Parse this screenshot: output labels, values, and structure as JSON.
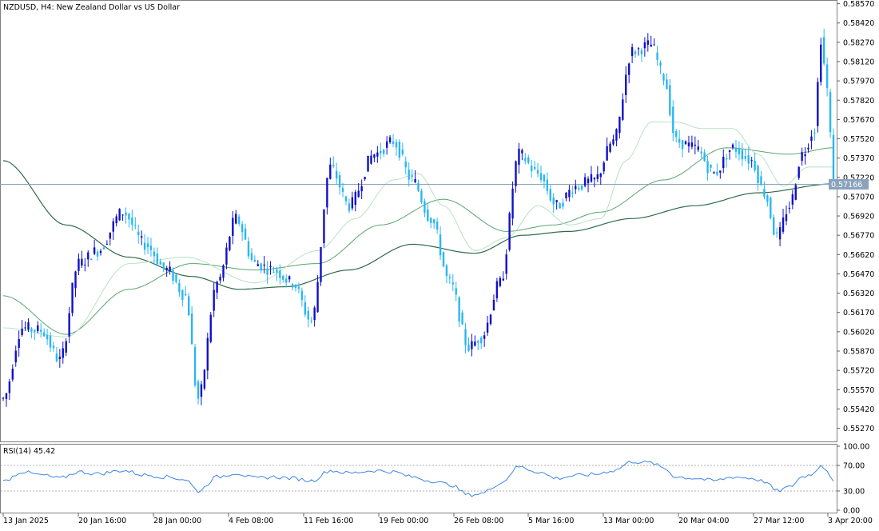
{
  "chart_title": "NZDUSD, H4:  New Zealand Dollar vs US Dollar",
  "current_price_label": "0.57166",
  "colors": {
    "bull": "#1010c8",
    "bear": "#29b6f6",
    "ma_fast": "#b8e2c4",
    "ma_mid": "#5aa56e",
    "ma_slow": "#2f6b47",
    "rsi": "#3d86e8",
    "price_line": "#8aa3bc",
    "axis": "#606060",
    "grid_dotted": "#b0b0b0"
  },
  "chart_data": {
    "type": "candlestick",
    "symbol": "NZDUSD",
    "timeframe": "H4",
    "ylim": [
      0.5518,
      0.5858
    ],
    "y_ticks": [
      "0.58570",
      "0.58420",
      "0.58270",
      "0.58120",
      "0.57970",
      "0.57820",
      "0.57670",
      "0.57520",
      "0.57370",
      "0.57220",
      "0.57070",
      "0.56920",
      "0.56770",
      "0.56620",
      "0.56470",
      "0.56320",
      "0.56170",
      "0.56020",
      "0.55870",
      "0.55720",
      "0.55570",
      "0.55420",
      "0.55270"
    ],
    "x_ticks": [
      "13 Jan 2025",
      "20 Jan 16:00",
      "28 Jan 00:00",
      "4 Feb 08:00",
      "11 Feb 16:00",
      "19 Feb 00:00",
      "26 Feb 08:00",
      "5 Mar 16:00",
      "13 Mar 00:00",
      "20 Mar 04:00",
      "27 Mar 12:00",
      "3 Apr 20:00"
    ],
    "last_price": 0.57166,
    "price_anchors": [
      [
        0,
        0.555
      ],
      [
        6,
        0.5605
      ],
      [
        12,
        0.5603
      ],
      [
        18,
        0.558
      ],
      [
        24,
        0.5655
      ],
      [
        30,
        0.5665
      ],
      [
        38,
        0.5695
      ],
      [
        45,
        0.567
      ],
      [
        52,
        0.565
      ],
      [
        58,
        0.563
      ],
      [
        62,
        0.555
      ],
      [
        68,
        0.564
      ],
      [
        74,
        0.569
      ],
      [
        80,
        0.5655
      ],
      [
        86,
        0.565
      ],
      [
        92,
        0.564
      ],
      [
        98,
        0.561
      ],
      [
        104,
        0.573
      ],
      [
        110,
        0.57
      ],
      [
        118,
        0.574
      ],
      [
        124,
        0.575
      ],
      [
        130,
        0.572
      ],
      [
        136,
        0.569
      ],
      [
        142,
        0.564
      ],
      [
        148,
        0.559
      ],
      [
        152,
        0.5598
      ],
      [
        158,
        0.564
      ],
      [
        164,
        0.574
      ],
      [
        170,
        0.5725
      ],
      [
        176,
        0.57
      ],
      [
        182,
        0.5715
      ],
      [
        188,
        0.572
      ],
      [
        194,
        0.575
      ],
      [
        200,
        0.582
      ],
      [
        206,
        0.5825
      ],
      [
        210,
        0.58
      ],
      [
        214,
        0.575
      ],
      [
        220,
        0.5745
      ],
      [
        226,
        0.5725
      ],
      [
        232,
        0.5745
      ],
      [
        238,
        0.5735
      ],
      [
        242,
        0.571
      ],
      [
        246,
        0.5675
      ],
      [
        250,
        0.57
      ],
      [
        254,
        0.574
      ],
      [
        258,
        0.576
      ],
      [
        260,
        0.583
      ],
      [
        262,
        0.579
      ],
      [
        264,
        0.5718
      ]
    ],
    "ma_fast": [
      [
        0,
        0.5605
      ],
      [
        20,
        0.5598
      ],
      [
        40,
        0.5655
      ],
      [
        58,
        0.566
      ],
      [
        80,
        0.564
      ],
      [
        100,
        0.5665
      ],
      [
        112,
        0.569
      ],
      [
        124,
        0.572
      ],
      [
        132,
        0.5725
      ],
      [
        140,
        0.57
      ],
      [
        150,
        0.5665
      ],
      [
        160,
        0.5675
      ],
      [
        170,
        0.57
      ],
      [
        180,
        0.5685
      ],
      [
        190,
        0.569
      ],
      [
        198,
        0.5735
      ],
      [
        206,
        0.5765
      ],
      [
        214,
        0.5765
      ],
      [
        222,
        0.576
      ],
      [
        232,
        0.576
      ],
      [
        240,
        0.574
      ],
      [
        248,
        0.5715
      ],
      [
        256,
        0.573
      ],
      [
        264,
        0.573
      ]
    ],
    "ma_mid": [
      [
        0,
        0.563
      ],
      [
        20,
        0.56
      ],
      [
        40,
        0.5635
      ],
      [
        60,
        0.5655
      ],
      [
        80,
        0.565
      ],
      [
        100,
        0.5655
      ],
      [
        120,
        0.5685
      ],
      [
        140,
        0.5705
      ],
      [
        160,
        0.568
      ],
      [
        175,
        0.5685
      ],
      [
        190,
        0.5695
      ],
      [
        210,
        0.572
      ],
      [
        230,
        0.5745
      ],
      [
        250,
        0.574
      ],
      [
        264,
        0.5745
      ]
    ],
    "ma_slow": [
      [
        0,
        0.5735
      ],
      [
        20,
        0.5685
      ],
      [
        40,
        0.566
      ],
      [
        60,
        0.5645
      ],
      [
        75,
        0.5635
      ],
      [
        90,
        0.5637
      ],
      [
        110,
        0.565
      ],
      [
        130,
        0.567
      ],
      [
        150,
        0.5663
      ],
      [
        165,
        0.5677
      ],
      [
        180,
        0.568
      ],
      [
        200,
        0.569
      ],
      [
        220,
        0.57
      ],
      [
        240,
        0.571
      ],
      [
        264,
        0.5717
      ]
    ],
    "rsi": {
      "label": "RSI(14) 45.42",
      "period": 14,
      "value": 45.42,
      "ylim": [
        0,
        100
      ],
      "levels": [
        30,
        70
      ],
      "y_ticks": [
        "100.00",
        "70.00",
        "30.00",
        "0.00"
      ],
      "anchors": [
        [
          0,
          45
        ],
        [
          6,
          60
        ],
        [
          12,
          55
        ],
        [
          18,
          50
        ],
        [
          24,
          60
        ],
        [
          30,
          57
        ],
        [
          38,
          62
        ],
        [
          45,
          55
        ],
        [
          52,
          52
        ],
        [
          58,
          48
        ],
        [
          62,
          30
        ],
        [
          68,
          52
        ],
        [
          74,
          58
        ],
        [
          80,
          50
        ],
        [
          86,
          52
        ],
        [
          92,
          50
        ],
        [
          98,
          46
        ],
        [
          104,
          62
        ],
        [
          110,
          58
        ],
        [
          118,
          62
        ],
        [
          124,
          60
        ],
        [
          130,
          52
        ],
        [
          136,
          46
        ],
        [
          142,
          40
        ],
        [
          148,
          24
        ],
        [
          152,
          26
        ],
        [
          158,
          42
        ],
        [
          164,
          68
        ],
        [
          170,
          60
        ],
        [
          176,
          50
        ],
        [
          182,
          54
        ],
        [
          188,
          56
        ],
        [
          194,
          62
        ],
        [
          200,
          76
        ],
        [
          206,
          74
        ],
        [
          210,
          66
        ],
        [
          214,
          52
        ],
        [
          220,
          50
        ],
        [
          226,
          46
        ],
        [
          232,
          52
        ],
        [
          238,
          50
        ],
        [
          242,
          45
        ],
        [
          246,
          30
        ],
        [
          250,
          36
        ],
        [
          254,
          52
        ],
        [
          258,
          58
        ],
        [
          260,
          72
        ],
        [
          262,
          62
        ],
        [
          264,
          45.42
        ]
      ]
    }
  }
}
